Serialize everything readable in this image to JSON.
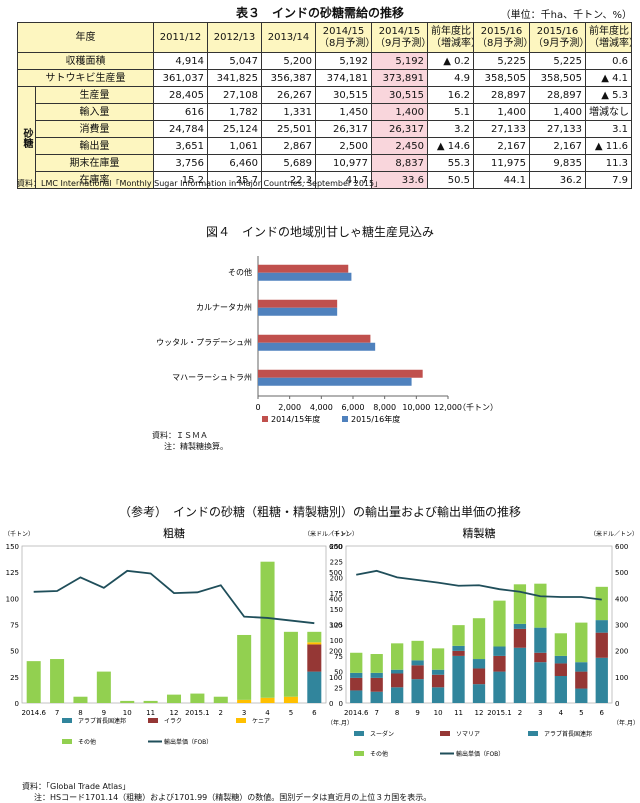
{
  "table3": {
    "title": "表３　インドの砂糖需給の推移",
    "unit": "（単位：千ha、千トン、%）",
    "headers": {
      "year": "年度",
      "c1": "2011/12",
      "c2": "2012/13",
      "c3": "2013/14",
      "c4a": "2014/15",
      "c4b": "（8月予測）",
      "c5a": "2014/15",
      "c5b": "（9月予測）",
      "c6a": "前年度比",
      "c6b": "（増減率）",
      "c7a": "2015/16",
      "c7b": "（8月予測）",
      "c8a": "2015/16",
      "c8b": "（9月予測）",
      "c9a": "前年度比",
      "c9b": "（増減率）"
    },
    "sugar_label": "砂糖",
    "rows": [
      {
        "label": "収穫面積",
        "v": [
          "4,914",
          "5,047",
          "5,200",
          "5,192",
          "5,192",
          "▲ 0.2",
          "5,225",
          "5,225",
          "0.6"
        ]
      },
      {
        "label": "サトウキビ生産量",
        "v": [
          "361,037",
          "341,825",
          "356,387",
          "374,181",
          "373,891",
          "4.9",
          "358,505",
          "358,505",
          "▲ 4.1"
        ]
      },
      {
        "label": "生産量",
        "v": [
          "28,405",
          "27,108",
          "26,267",
          "30,515",
          "30,515",
          "16.2",
          "28,897",
          "28,897",
          "▲ 5.3"
        ]
      },
      {
        "label": "輸入量",
        "v": [
          "616",
          "1,782",
          "1,331",
          "1,450",
          "1,400",
          "5.1",
          "1,400",
          "1,400",
          "増減なし"
        ]
      },
      {
        "label": "消費量",
        "v": [
          "24,784",
          "25,124",
          "25,501",
          "26,317",
          "26,317",
          "3.2",
          "27,133",
          "27,133",
          "3.1"
        ]
      },
      {
        "label": "輸出量",
        "v": [
          "3,651",
          "1,061",
          "2,867",
          "2,500",
          "2,450",
          "▲ 14.6",
          "2,167",
          "2,167",
          "▲ 11.6"
        ]
      },
      {
        "label": "期末在庫量",
        "v": [
          "3,756",
          "6,460",
          "5,689",
          "10,977",
          "8,837",
          "55.3",
          "11,975",
          "9,835",
          "11.3"
        ]
      },
      {
        "label": "在庫率",
        "v": [
          "15.2",
          "25.7",
          "22.3",
          "41.7",
          "33.6",
          "50.5",
          "44.1",
          "36.2",
          "7.9"
        ]
      }
    ],
    "source": "資料：LMC International「Monthly Sugar Information in Major Countries, September 2015」"
  },
  "figure4": {
    "title": "図４　インドの地域別甘しゃ糖生産見込み",
    "source_line1": "資料：ＩＳＭＡ",
    "source_line2": "注：精製糖換算。"
  },
  "reference": {
    "title": "（参考）　インドの砂糖（粗糖・精製糖別）の輸出量および輸出単価の推移"
  },
  "bottom_source": {
    "line1": "資料：「Global Trade Atlas」",
    "line2": "注：HSコード1701.14（粗糖）および1701.99（精製糖）の数値。国別データは直近月の上位３カ国を表示。"
  },
  "colors": {
    "series_2014": "#c0504d",
    "series_2015": "#4f81bd",
    "uae": "#31859c",
    "iraq": "#953735",
    "kenya": "#ffc000",
    "sudan": "#31859c",
    "somalia": "#953735",
    "other": "#92d050",
    "fob_line": "#1f4e5a",
    "header_bg": "#fdf6c0",
    "highlight_bg": "#f9d6dc"
  },
  "chart_data": [
    {
      "id": "fig4",
      "type": "bar",
      "orientation": "horizontal",
      "categories": [
        "その他",
        "カルナータカ州",
        "ウッタル・プラデーシュ州",
        "マハーラーシュトラ州"
      ],
      "series": [
        {
          "name": "2014/15年度",
          "values": [
            5700,
            5000,
            7100,
            10400
          ]
        },
        {
          "name": "2015/16年度",
          "values": [
            5900,
            5000,
            7400,
            9700
          ]
        }
      ],
      "xlim": [
        0,
        12000
      ],
      "xticks": [
        "0",
        "2,000",
        "4,000",
        "6,000",
        "8,000",
        "10,000",
        "12,000"
      ],
      "xunit": "（千トン）",
      "legend": "bottom"
    },
    {
      "id": "raw",
      "type": "bar",
      "stacked": true,
      "title": "粗糖",
      "categories": [
        "2014.6",
        "7",
        "8",
        "9",
        "10",
        "11",
        "12",
        "2015.1",
        "2",
        "3",
        "4",
        "5",
        "6"
      ],
      "series": [
        {
          "name": "アラブ首長国連邦",
          "values": [
            0,
            0,
            0,
            0,
            0,
            0,
            0,
            0,
            0,
            0,
            0,
            0,
            30
          ]
        },
        {
          "name": "イラク",
          "values": [
            0,
            0,
            0,
            0,
            0,
            0,
            0,
            0,
            0,
            0,
            0,
            0,
            26
          ]
        },
        {
          "name": "ケニア",
          "values": [
            0,
            0,
            0,
            0,
            0,
            0,
            0,
            0,
            0,
            3,
            5,
            6,
            2
          ]
        },
        {
          "name": "その他",
          "values": [
            40,
            42,
            6,
            30,
            2,
            2,
            8,
            9,
            6,
            62,
            130,
            62,
            10
          ]
        }
      ],
      "line": {
        "name": "輸出単価（FOB）",
        "values": [
          425,
          428,
          480,
          440,
          505,
          495,
          420,
          423,
          450,
          330,
          325,
          315,
          305
        ]
      },
      "ylim_left": [
        0,
        150
      ],
      "ylim_right": [
        0,
        600
      ],
      "yticks_left": [
        "0",
        "25",
        "50",
        "75",
        "100",
        "125",
        "150"
      ],
      "yticks_right": [
        "0",
        "100",
        "200",
        "300",
        "400",
        "500",
        "600"
      ],
      "yunit_left": "（千トン）",
      "yunit_right": "（米ドル／トン）",
      "xunit": "（年.月）"
    },
    {
      "id": "refined",
      "type": "bar",
      "stacked": true,
      "title": "精製糖",
      "categories": [
        "2014.6",
        "7",
        "8",
        "9",
        "10",
        "11",
        "12",
        "2015.1",
        "2",
        "3",
        "4",
        "5",
        "6"
      ],
      "series": [
        {
          "name": "スーダン",
          "values": [
            20,
            18,
            25,
            38,
            25,
            75,
            30,
            50,
            88,
            65,
            43,
            23,
            72
          ]
        },
        {
          "name": "ソマリア",
          "values": [
            20,
            22,
            22,
            22,
            20,
            8,
            25,
            25,
            30,
            15,
            20,
            27,
            40
          ]
        },
        {
          "name": "アラブ首長国連邦",
          "values": [
            8,
            8,
            6,
            8,
            8,
            8,
            15,
            15,
            8,
            40,
            12,
            15,
            20
          ]
        },
        {
          "name": "その他",
          "values": [
            32,
            30,
            42,
            31,
            34,
            33,
            65,
            73,
            63,
            70,
            36,
            63,
            53
          ]
        }
      ],
      "line": {
        "name": "輸出単価（FOB）",
        "values": [
          490,
          505,
          480,
          470,
          460,
          448,
          450,
          435,
          425,
          408,
          405,
          405,
          395
        ]
      },
      "ylim_left": [
        0,
        250
      ],
      "ylim_right": [
        0,
        600
      ],
      "yticks_left": [
        "0",
        "25",
        "50",
        "75",
        "100",
        "125",
        "150",
        "175",
        "200",
        "225",
        "250"
      ],
      "yticks_right": [
        "0",
        "100",
        "200",
        "300",
        "400",
        "500",
        "600"
      ],
      "yunit_left": "（千トン）",
      "yunit_right": "（米ドル／トン）",
      "xunit": "（年.月）"
    }
  ]
}
